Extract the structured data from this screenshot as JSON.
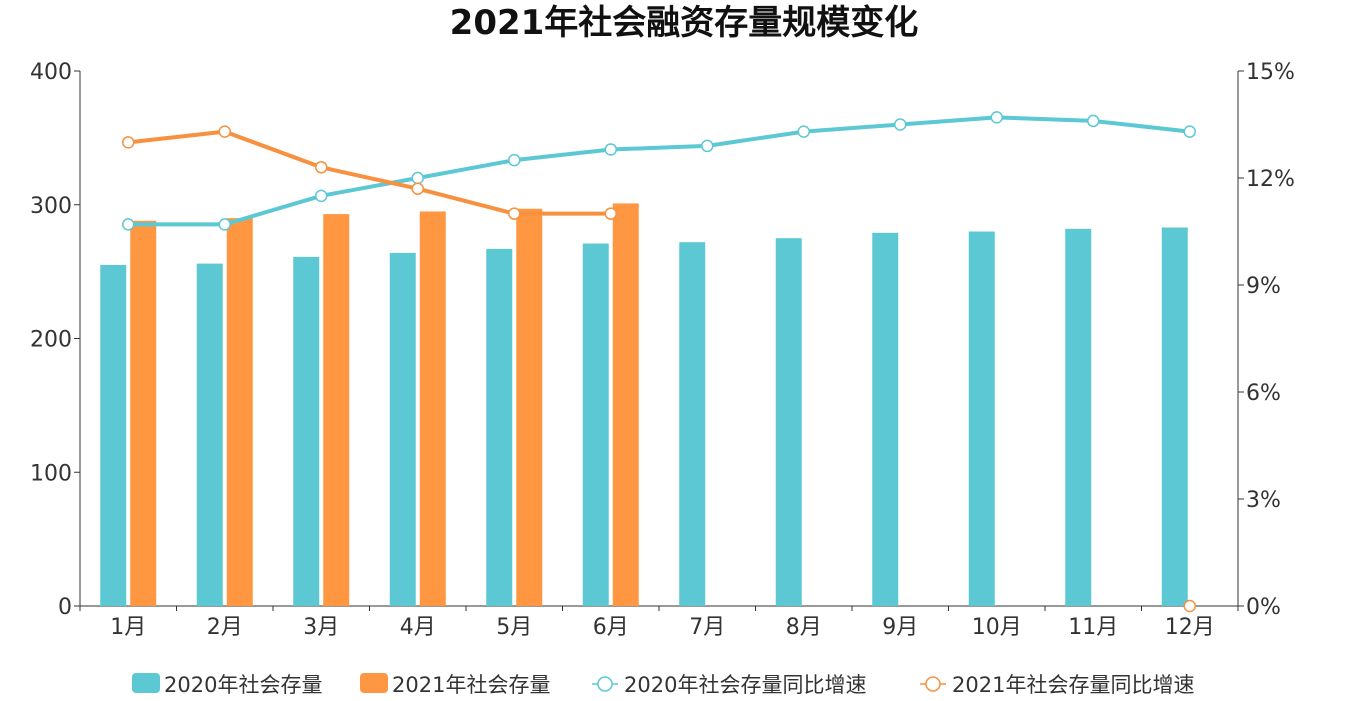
{
  "chart_data": {
    "type": "bar",
    "title": "2021年社会融资存量规模变化",
    "categories": [
      "1月",
      "2月",
      "3月",
      "4月",
      "5月",
      "6月",
      "7月",
      "8月",
      "9月",
      "10月",
      "11月",
      "12月"
    ],
    "series": [
      {
        "name": "2020年社会存量",
        "type": "bar",
        "axis": "left",
        "color": "#5BC8D4",
        "values": [
          255,
          256,
          261,
          264,
          267,
          271,
          272,
          275,
          279,
          280,
          282,
          283
        ]
      },
      {
        "name": "2021年社会存量",
        "type": "bar",
        "axis": "left",
        "color": "#FF9742",
        "values": [
          288,
          290,
          293,
          295,
          297,
          301,
          null,
          null,
          null,
          null,
          null,
          null
        ]
      },
      {
        "name": "2020年社会存量同比增速",
        "type": "line",
        "axis": "right",
        "color": "#5BC8D4",
        "values": [
          10.7,
          10.7,
          11.5,
          12.0,
          12.5,
          12.8,
          12.9,
          13.3,
          13.5,
          13.7,
          13.6,
          13.3
        ]
      },
      {
        "name": "2021年社会存量同比增速",
        "type": "line",
        "axis": "right",
        "color": "#F7913F",
        "values": [
          13.0,
          13.3,
          12.3,
          11.7,
          11.0,
          11.0,
          null,
          null,
          null,
          null,
          null,
          0
        ]
      }
    ],
    "y_left": {
      "ylim": [
        0,
        400
      ],
      "ticks": [
        0,
        100,
        200,
        300,
        400
      ]
    },
    "y_right": {
      "ylim": [
        0,
        15
      ],
      "ticks": [
        "0%",
        "3%",
        "6%",
        "9%",
        "12%",
        "15%"
      ]
    },
    "legend_position": "bottom-center",
    "grid": false
  }
}
